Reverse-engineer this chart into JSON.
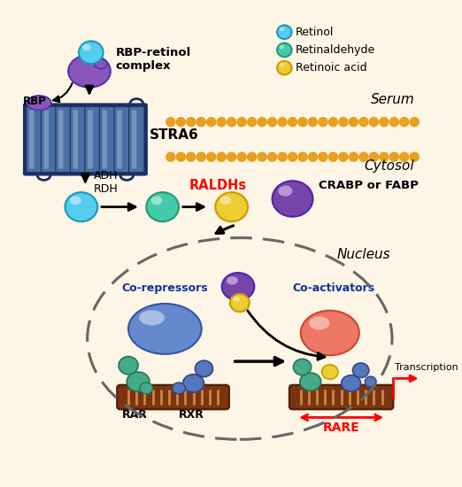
{
  "bg_color": "#fdf5e6",
  "membrane_dot_color": "#e8a020",
  "stra6_color": "#4a6fa5",
  "stra6_edge_color": "#1a3060",
  "serum_label": "Serum",
  "cytosol_label": "Cytosol",
  "nucleus_label": "Nucleus",
  "legend_items": [
    {
      "label": "Retinol",
      "color": "#55ccee",
      "edge": "#1a99bb"
    },
    {
      "label": "Retinaldehyde",
      "color": "#44ccaa",
      "edge": "#229977"
    },
    {
      "label": "Retinoic acid",
      "color": "#eecc33",
      "edge": "#cc9900"
    }
  ],
  "rbp_retinol_label": "RBP-retinol\ncomplex",
  "rbp_label": "RBP",
  "stra6_label": "STRA6",
  "adh_rdh_label": "ADH\nRDH",
  "ralDHs_label": "RALDHs",
  "crabp_fabp_label": "CRABP or FABP",
  "co_repressors_label": "Co-repressors",
  "co_activators_label": "Co-activators",
  "rar_label": "RAR",
  "rxr_label": "RXR",
  "rare_label": "RARE",
  "transcription_label": "Transcription",
  "retinol_color": "#55ccee",
  "retinol_edge": "#1a99bb",
  "retinaldehyde_color": "#44ccaa",
  "retinaldehyde_edge": "#229977",
  "retinoic_acid_color": "#eecc33",
  "retinoic_acid_edge": "#cc9900",
  "rbp_protein_color": "#8855bb",
  "rbp_protein_edge": "#5533aa",
  "purple_protein_color": "#7744aa",
  "purple_protein_edge": "#5522aa",
  "blue_large_color": "#6688cc",
  "blue_large_edge": "#3355aa",
  "green_protein_color": "#44aa88",
  "green_protein_edge": "#227755",
  "blue_protein_color": "#5577bb",
  "blue_protein_edge": "#334488",
  "red_protein_color": "#ee7766",
  "red_protein_edge": "#cc4433",
  "dna_color": "#7b3410",
  "dna_stripe": "#cc8844"
}
